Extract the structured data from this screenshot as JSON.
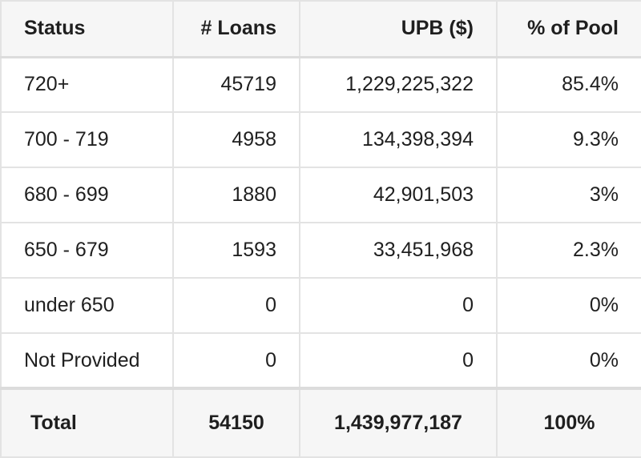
{
  "table": {
    "headers": [
      "Status",
      "# Loans",
      "UPB ($)",
      "% of Pool"
    ],
    "rows": [
      [
        "720+",
        "45719",
        "1,229,225,322",
        "85.4%"
      ],
      [
        "700 - 719",
        "4958",
        "134,398,394",
        "9.3%"
      ],
      [
        "680 - 699",
        "1880",
        "42,901,503",
        "3%"
      ],
      [
        "650 - 679",
        "1593",
        "33,451,968",
        "2.3%"
      ],
      [
        "under 650",
        "0",
        "0",
        "0%"
      ],
      [
        "Not Provided",
        "0",
        "0",
        "0%"
      ]
    ],
    "total": [
      "Total",
      "54150",
      "1,439,977,187",
      "100%"
    ]
  }
}
